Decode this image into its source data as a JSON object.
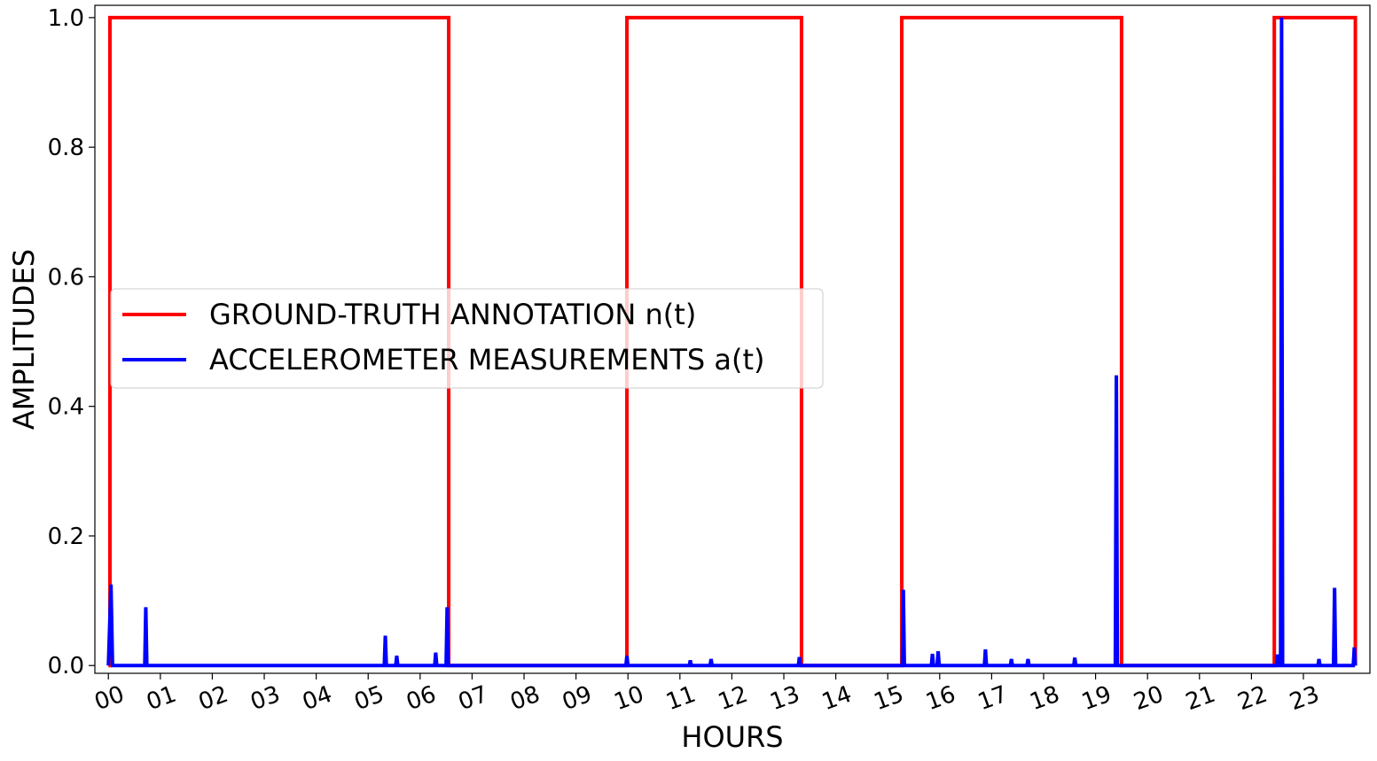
{
  "chart_data": {
    "type": "line",
    "xlabel": "HOURS",
    "ylabel": "AMPLITUDES",
    "xlim": [
      -0.26,
      24.28
    ],
    "ylim": [
      -0.012,
      1.019
    ],
    "xticks": [
      {
        "value": 0,
        "label": "00"
      },
      {
        "value": 1,
        "label": "01"
      },
      {
        "value": 2,
        "label": "02"
      },
      {
        "value": 3,
        "label": "03"
      },
      {
        "value": 4,
        "label": "04"
      },
      {
        "value": 5,
        "label": "05"
      },
      {
        "value": 6,
        "label": "06"
      },
      {
        "value": 7,
        "label": "07"
      },
      {
        "value": 8,
        "label": "08"
      },
      {
        "value": 9,
        "label": "09"
      },
      {
        "value": 10,
        "label": "10"
      },
      {
        "value": 11,
        "label": "11"
      },
      {
        "value": 12,
        "label": "12"
      },
      {
        "value": 13,
        "label": "13"
      },
      {
        "value": 14,
        "label": "14"
      },
      {
        "value": 15,
        "label": "15"
      },
      {
        "value": 16,
        "label": "16"
      },
      {
        "value": 17,
        "label": "17"
      },
      {
        "value": 18,
        "label": "18"
      },
      {
        "value": 19,
        "label": "19"
      },
      {
        "value": 20,
        "label": "20"
      },
      {
        "value": 21,
        "label": "21"
      },
      {
        "value": 22,
        "label": "22"
      },
      {
        "value": 23,
        "label": "23"
      }
    ],
    "yticks": [
      {
        "value": 0,
        "label": "0.0"
      },
      0.2,
      0.4,
      0.6,
      0.8,
      {
        "value": 1,
        "label": "1.0"
      }
    ],
    "grid": false,
    "legend": "center left",
    "series": [
      {
        "name": "GROUND-TRUTH ANNOTATION n(t)",
        "color": "#ff0000",
        "x": [
          0,
          0.03,
          0.03,
          6.55,
          6.55,
          9.98,
          9.98,
          13.34,
          13.34,
          15.27,
          15.27,
          19.5,
          19.5,
          22.44,
          22.44,
          24.0,
          24.0
        ],
        "values": [
          0,
          0,
          1,
          1,
          0,
          0,
          1,
          1,
          0,
          0,
          1,
          1,
          0,
          0,
          1,
          1,
          0
        ]
      },
      {
        "name": "ACCELEROMETER MEASUREMENTS a(t)",
        "color": "#0000ff",
        "x": [
          0.0,
          0.05,
          0.08,
          0.7,
          0.72,
          0.74,
          5.31,
          5.33,
          5.35,
          5.53,
          5.55,
          5.57,
          6.28,
          6.3,
          6.32,
          6.5,
          6.52,
          6.54,
          9.96,
          9.98,
          10.0,
          11.18,
          11.2,
          11.22,
          11.58,
          11.6,
          11.62,
          13.28,
          13.3,
          13.32,
          15.28,
          15.3,
          15.32,
          15.84,
          15.86,
          15.88,
          15.95,
          15.97,
          15.99,
          16.86,
          16.88,
          16.9,
          17.36,
          17.38,
          17.4,
          17.68,
          17.7,
          17.72,
          18.58,
          18.6,
          18.62,
          19.38,
          19.4,
          19.42,
          22.48,
          22.5,
          22.52,
          22.56,
          22.58,
          22.6,
          23.28,
          23.3,
          23.32,
          23.58,
          23.6,
          23.62,
          23.96,
          23.98,
          24.0
        ],
        "values": [
          0,
          0.125,
          0,
          0,
          0.09,
          0,
          0,
          0.046,
          0,
          0,
          0.015,
          0,
          0,
          0.02,
          0,
          0,
          0.09,
          0,
          0,
          0.015,
          0,
          0,
          0.008,
          0,
          0,
          0.01,
          0,
          0,
          0.013,
          0,
          0,
          0.117,
          0,
          0,
          0.018,
          0,
          0,
          0.022,
          0,
          0,
          0.025,
          0,
          0,
          0.01,
          0,
          0,
          0.01,
          0,
          0,
          0.012,
          0,
          0,
          0.448,
          0,
          0,
          0.017,
          0,
          0,
          1.0,
          0,
          0,
          0.01,
          0,
          0,
          0.12,
          0,
          0,
          0.028,
          0
        ]
      }
    ]
  }
}
